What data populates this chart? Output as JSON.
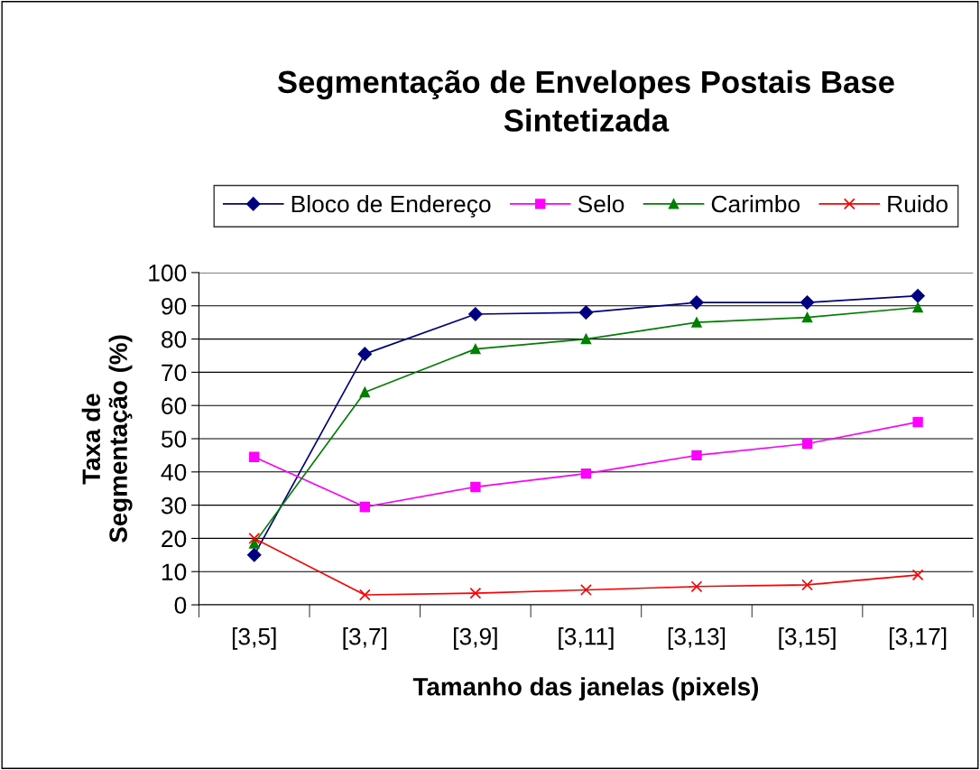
{
  "chart_data": {
    "type": "line",
    "title": "Segmentação de Envelopes Postais Base Sintetizada",
    "xlabel": "Tamanho das janelas (pixels)",
    "ylabel": "Taxa de\nSegmentação (%)",
    "categories": [
      "[3,5]",
      "[3,7]",
      "[3,9]",
      "[3,11]",
      "[3,13]",
      "[3,15]",
      "[3,17]"
    ],
    "series": [
      {
        "name": "Bloco de Endereço",
        "color": "#000080",
        "marker": "diamond",
        "values": [
          15,
          75.5,
          87.5,
          88,
          91,
          91,
          93
        ]
      },
      {
        "name": "Selo",
        "color": "#ff00ff",
        "marker": "square",
        "values": [
          44.5,
          29.5,
          35.5,
          39.5,
          45,
          48.5,
          55
        ]
      },
      {
        "name": "Carimbo",
        "color": "#008000",
        "marker": "triangle",
        "values": [
          18.5,
          64,
          77,
          80,
          85,
          86.5,
          89.5
        ]
      },
      {
        "name": "Ruido",
        "color": "#ff0000",
        "marker": "cross",
        "values": [
          20,
          3,
          3.5,
          4.5,
          5.5,
          6,
          9
        ]
      }
    ],
    "ylim": [
      0,
      100
    ],
    "yticks": [
      0,
      10,
      20,
      30,
      40,
      50,
      60,
      70,
      80,
      90,
      100
    ],
    "grid": "y",
    "legend": "top"
  }
}
